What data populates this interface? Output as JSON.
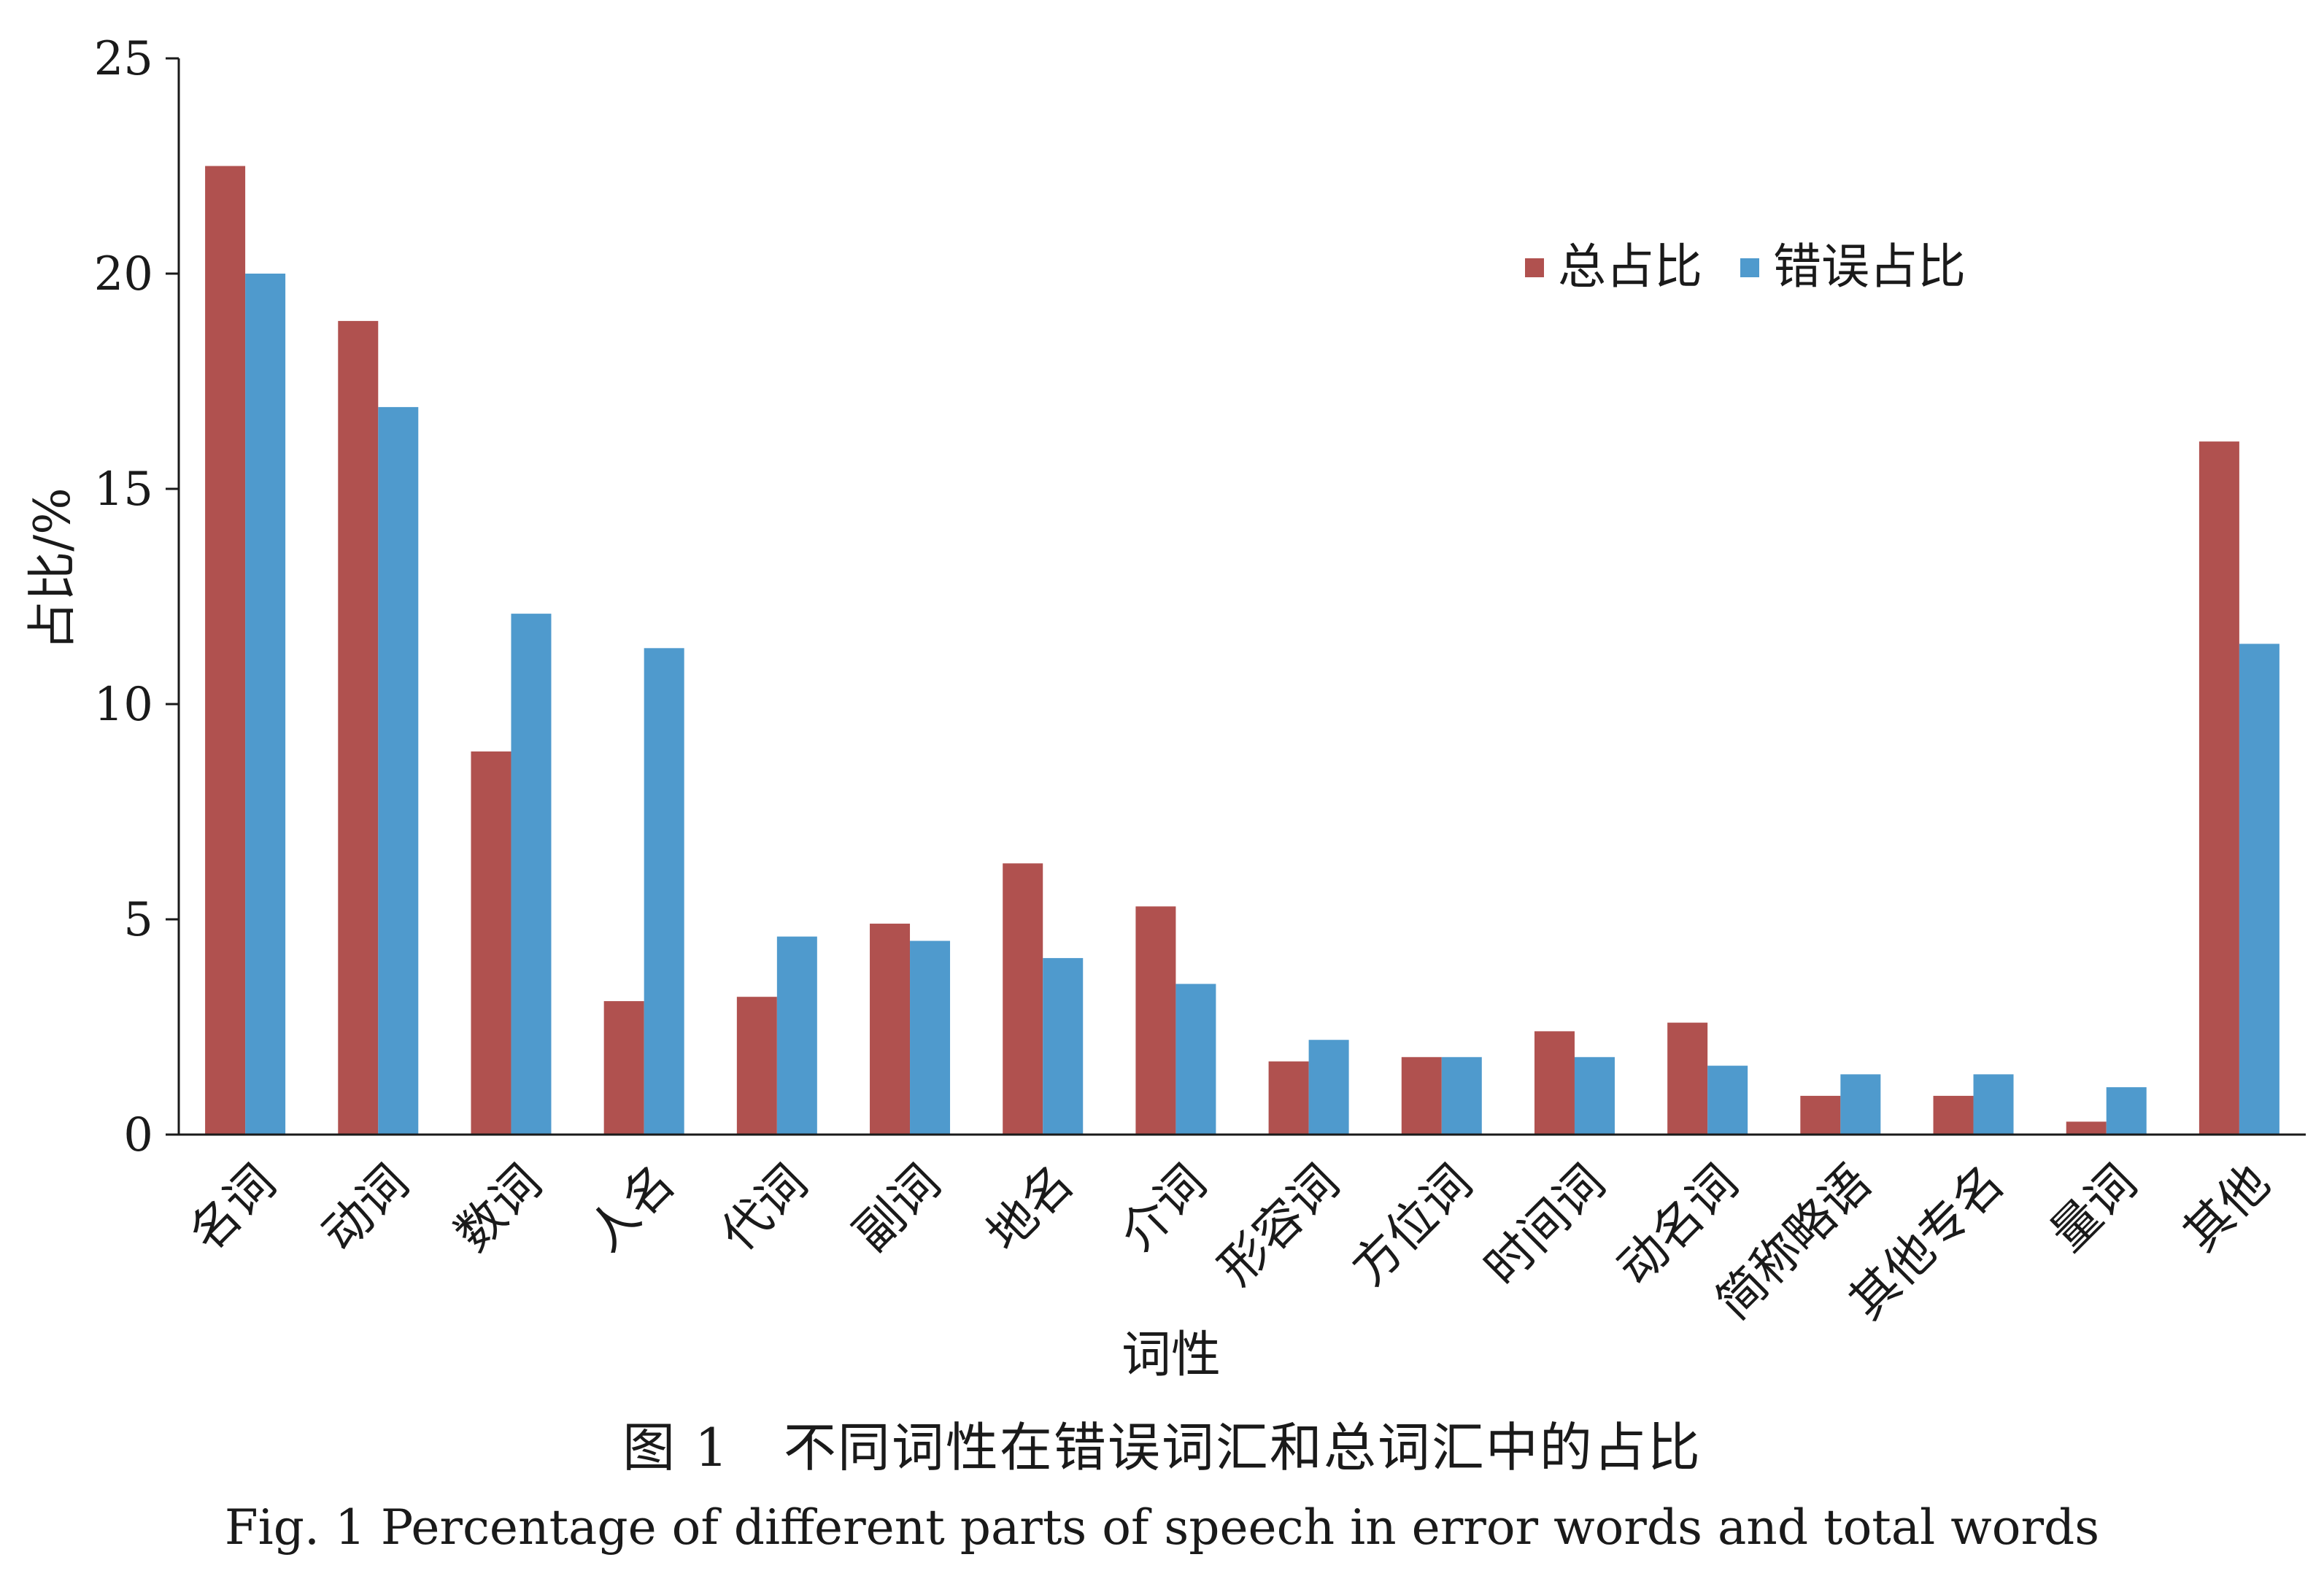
{
  "chart_data": {
    "type": "bar",
    "categories": [
      "名词",
      "动词",
      "数词",
      "人名",
      "代词",
      "副词",
      "地名",
      "介词",
      "形容词",
      "方位词",
      "时间词",
      "动名词",
      "简称略语",
      "其他专名",
      "量词",
      "其他"
    ],
    "series": [
      {
        "name": "总占比",
        "values": [
          22.5,
          18.9,
          8.9,
          3.1,
          3.2,
          4.9,
          6.3,
          5.3,
          1.7,
          1.8,
          2.4,
          2.6,
          0.9,
          0.9,
          0.3,
          16.1
        ]
      },
      {
        "name": "错误占比",
        "values": [
          20.0,
          16.9,
          12.1,
          11.3,
          4.6,
          4.5,
          4.1,
          3.5,
          2.2,
          1.8,
          1.8,
          1.6,
          1.4,
          1.4,
          1.1,
          11.4
        ]
      }
    ],
    "xlabel": "词性",
    "ylabel": "占比/%",
    "ylim": [
      0,
      25
    ],
    "yticks": [
      0,
      5,
      10,
      15,
      20,
      25
    ],
    "legend_position": "top-right",
    "grid": false
  },
  "colors": {
    "series_0": "#b0514f",
    "series_1": "#4f9acd"
  },
  "caption": {
    "cn": "图 1　不同词性在错误词汇和总词汇中的占比",
    "en": "Fig. 1   Percentage of different parts of speech in error words and total words"
  }
}
